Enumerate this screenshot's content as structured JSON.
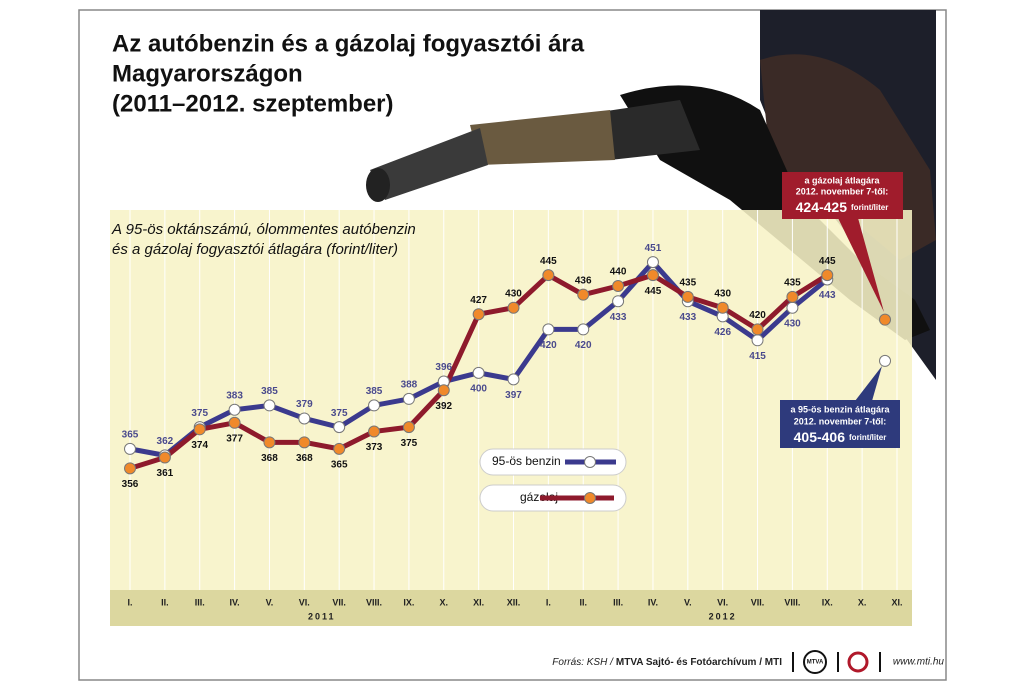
{
  "chart_data": {
    "type": "line",
    "title_lines": [
      "Az autóbenzin és a gázolaj fogyasztói ára",
      "Magyarországon",
      "(2011–2012. szeptember)"
    ],
    "subtitle_lines": [
      "A 95-ös oktánszámú, ólommentes autóbenzin",
      "és a gázolaj fogyasztói átlagára (forint/liter)"
    ],
    "categories": [
      "I.",
      "II.",
      "III.",
      "IV.",
      "V.",
      "VI.",
      "VII.",
      "VIII.",
      "IX.",
      "X.",
      "XI.",
      "XII.",
      "I.",
      "II.",
      "III.",
      "IV.",
      "V.",
      "VI.",
      "VII.",
      "VIII.",
      "IX.",
      "X.",
      "XI."
    ],
    "year_labels": [
      "2011",
      "2012"
    ],
    "series": [
      {
        "name": "95-ös benzin",
        "color": "#3b3a8e",
        "marker_color": "#ffffff",
        "values": [
          365,
          362,
          375,
          383,
          385,
          379,
          375,
          385,
          388,
          396,
          400,
          397,
          420,
          420,
          433,
          451,
          433,
          426,
          415,
          430,
          443,
          null,
          null
        ]
      },
      {
        "name": "gázolaj",
        "color": "#8e1a2c",
        "marker_color": "#f0892a",
        "values": [
          356,
          361,
          374,
          377,
          368,
          368,
          365,
          373,
          375,
          392,
          427,
          430,
          445,
          436,
          440,
          445,
          435,
          430,
          420,
          435,
          445,
          null,
          null
        ]
      }
    ],
    "ylim": [
      300,
      475
    ],
    "grid": true,
    "annotations": [
      {
        "lines": [
          "a gázolaj átlagára",
          "2012. november 7-től:"
        ],
        "value_label": "424-425",
        "unit": "forint/liter",
        "range": [
          424,
          425
        ]
      },
      {
        "lines": [
          "a 95-ös benzin átlagára",
          "2012. november 7-től:"
        ],
        "value_label": "405-406",
        "unit": "forint/liter",
        "range": [
          405,
          406
        ]
      }
    ],
    "source_prefix": "Forrás: KSH /",
    "source_main": "MTVA Sajtó- és Fotóarchívum / MTI",
    "logo_text": "MTVA",
    "website": "www.mti.hu"
  }
}
